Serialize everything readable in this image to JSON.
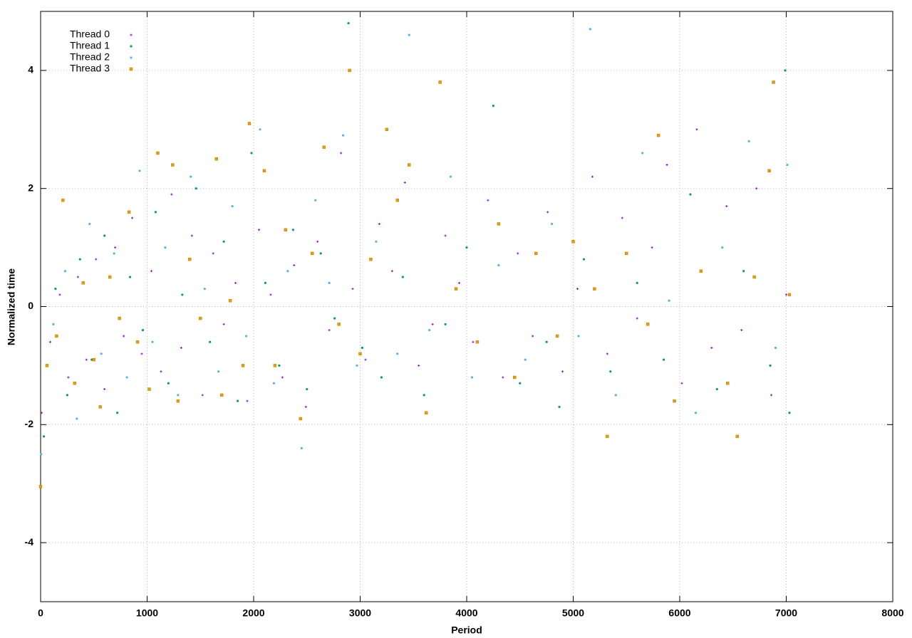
{
  "chart_data": {
    "type": "scatter",
    "x_label": "Period",
    "y_label": "Normalized time",
    "xlim": [
      0,
      8000
    ],
    "ylim": [
      -5,
      5
    ],
    "xticks": [
      0,
      1000,
      2000,
      3000,
      4000,
      5000,
      6000,
      7000,
      8000
    ],
    "yticks": [
      -4,
      -2,
      0,
      2,
      4
    ],
    "grid": true,
    "legend": "upper left",
    "series": [
      {
        "name": "Thread 0",
        "color": "#9400d3",
        "marker": "plus",
        "x": [
          10,
          90,
          180,
          260,
          350,
          430,
          520,
          600,
          700,
          780,
          860,
          950,
          1040,
          1130,
          1230,
          1320,
          1420,
          1520,
          1620,
          1720,
          1830,
          1940,
          2050,
          2160,
          2270,
          2380,
          2490,
          2600,
          2710,
          2820,
          2930,
          3050,
          3180,
          3300,
          3420,
          3550,
          3680,
          3800,
          3930,
          4060,
          4200,
          4340,
          4480,
          4620,
          4760,
          4900,
          5040,
          5180,
          5320,
          5460,
          5600,
          5740,
          5880,
          6020,
          6160,
          6300,
          6440,
          6580,
          6720,
          6860,
          7000
        ],
        "values": [
          -1.8,
          -0.6,
          0.2,
          -1.2,
          0.5,
          -0.9,
          0.8,
          -1.4,
          1.0,
          -0.5,
          1.5,
          -0.8,
          0.6,
          -1.1,
          1.9,
          -0.7,
          1.2,
          -1.5,
          0.9,
          -0.3,
          0.4,
          -1.6,
          1.3,
          0.2,
          -1.2,
          0.7,
          -1.7,
          1.1,
          -0.4,
          2.6,
          0.3,
          -0.9,
          1.4,
          0.6,
          2.1,
          -1.0,
          -0.3,
          1.2,
          0.4,
          -0.6,
          1.8,
          -1.2,
          0.9,
          -0.5,
          1.6,
          -1.1,
          0.3,
          2.2,
          -0.8,
          1.5,
          -0.2,
          1.0,
          2.4,
          -1.3,
          3.0,
          -0.7,
          1.7,
          -0.4,
          2.0,
          -1.5,
          0.2
        ]
      },
      {
        "name": "Thread 1",
        "color": "#009e73",
        "marker": "dot",
        "x": [
          30,
          140,
          250,
          370,
          480,
          600,
          720,
          840,
          960,
          1080,
          1200,
          1330,
          1460,
          1590,
          1720,
          1850,
          1980,
          2110,
          2240,
          2370,
          2500,
          2630,
          2760,
          2890,
          3020,
          3200,
          3400,
          3600,
          3800,
          4000,
          4250,
          4500,
          4750,
          4870,
          5100,
          5350,
          5600,
          5850,
          6100,
          6350,
          6600,
          6850,
          6990,
          7030
        ],
        "values": [
          -2.2,
          0.3,
          -1.5,
          0.8,
          -0.9,
          1.2,
          -1.8,
          0.5,
          -0.4,
          1.6,
          -1.3,
          0.2,
          2.0,
          -0.6,
          1.1,
          -1.6,
          2.6,
          0.4,
          -1.0,
          1.3,
          -1.4,
          0.9,
          -0.2,
          4.8,
          -0.7,
          -1.2,
          0.5,
          -1.5,
          -0.3,
          1.0,
          3.4,
          -1.3,
          -0.6,
          -1.7,
          0.8,
          -1.1,
          0.4,
          -0.9,
          1.9,
          -1.4,
          0.6,
          -1.0,
          4.0,
          -1.8
        ]
      },
      {
        "name": "Thread 2",
        "color": "#56b4e9",
        "marker": "dot",
        "x": [
          5,
          120,
          230,
          340,
          460,
          570,
          690,
          810,
          930,
          1050,
          1170,
          1290,
          1410,
          1540,
          1670,
          1800,
          1930,
          2060,
          2190,
          2320,
          2450,
          2580,
          2710,
          2840,
          2970,
          3150,
          3350,
          3460,
          3650,
          3850,
          4050,
          4300,
          4550,
          4800,
          5050,
          5160,
          5400,
          5650,
          5900,
          6150,
          6400,
          6650,
          6900,
          7010
        ],
        "values": [
          -2.5,
          -0.3,
          0.6,
          -1.9,
          1.4,
          -0.8,
          0.9,
          -1.2,
          2.3,
          -0.6,
          1.0,
          -1.5,
          2.2,
          0.3,
          -1.1,
          1.7,
          -0.5,
          3.0,
          -1.3,
          0.6,
          -2.4,
          1.8,
          0.4,
          2.9,
          -1.0,
          1.1,
          -0.8,
          4.6,
          -0.4,
          2.2,
          -1.2,
          0.7,
          -0.9,
          1.4,
          -0.5,
          4.7,
          -1.5,
          2.6,
          0.1,
          -1.8,
          1.0,
          2.8,
          -0.7,
          2.4
        ]
      },
      {
        "name": "Thread 3",
        "color": "#e69f00",
        "marker": "square",
        "x": [
          0,
          60,
          150,
          210,
          320,
          400,
          500,
          560,
          650,
          740,
          830,
          910,
          1020,
          1100,
          1240,
          1290,
          1400,
          1500,
          1650,
          1700,
          1780,
          1900,
          1960,
          2100,
          2200,
          2300,
          2440,
          2550,
          2660,
          2800,
          2900,
          3000,
          3100,
          3250,
          3350,
          3460,
          3620,
          3750,
          3900,
          4100,
          4300,
          4450,
          4650,
          4850,
          5000,
          5200,
          5320,
          5500,
          5700,
          5800,
          5950,
          6200,
          6450,
          6540,
          6700,
          6840,
          6880,
          7030
        ],
        "values": [
          -3.05,
          -1.0,
          -0.5,
          1.8,
          -1.3,
          0.4,
          -0.9,
          -1.7,
          0.5,
          -0.2,
          1.6,
          -0.6,
          -1.4,
          2.6,
          2.4,
          -1.6,
          0.8,
          -0.2,
          2.5,
          -1.5,
          0.1,
          -1.0,
          3.1,
          2.3,
          -1.0,
          1.3,
          -1.9,
          0.9,
          2.7,
          -0.3,
          4.0,
          -0.8,
          0.8,
          3.0,
          1.8,
          2.4,
          -1.8,
          3.8,
          0.3,
          -0.6,
          1.4,
          -1.2,
          0.9,
          -0.5,
          1.1,
          0.3,
          -2.2,
          0.9,
          -0.3,
          2.9,
          -1.6,
          0.6,
          -1.3,
          -2.2,
          0.5,
          2.3,
          3.8,
          0.2
        ]
      }
    ]
  }
}
